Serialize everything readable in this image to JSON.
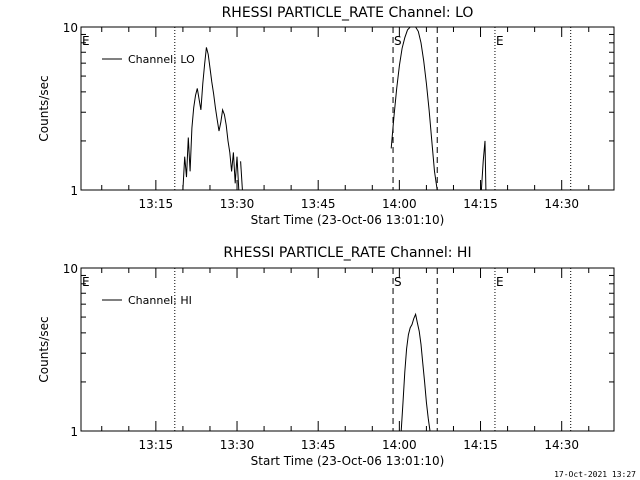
{
  "chart_data": [
    {
      "type": "line",
      "title": "RHESSI PARTICLE_RATE Channel: LO",
      "xlabel": "Start Time (23-Oct-06 13:01:10)",
      "ylabel": "Counts/sec",
      "yscale": "log",
      "ylim": [
        1,
        10
      ],
      "yticks": [
        "1",
        "10"
      ],
      "xlim": [
        "13:01:10",
        "14:39:40"
      ],
      "xticks": [
        "13:15",
        "13:30",
        "13:45",
        "14:00",
        "14:15",
        "14:30"
      ],
      "legend": "top-left",
      "series": [
        {
          "name": "Channel: LO",
          "x": [
            "13:20:00",
            "13:20:20",
            "13:20:40",
            "13:21:00",
            "13:21:20",
            "13:21:40",
            "13:22:00",
            "13:22:20",
            "13:22:40",
            "13:23:00",
            "13:23:20",
            "13:23:40",
            "13:24:00",
            "13:24:20",
            "13:24:40",
            "13:25:00",
            "13:25:20",
            "13:25:40",
            "13:26:00",
            "13:26:20",
            "13:26:40",
            "13:27:00",
            "13:27:20",
            "13:27:40",
            "13:28:00",
            "13:28:20",
            "13:28:40",
            "13:29:00",
            "13:29:20",
            "13:29:40",
            "13:30:00",
            "13:30:20",
            "13:30:40",
            "13:31:00",
            "13:31:20",
            "13:58:00",
            "13:58:30",
            "13:59:00",
            "13:59:30",
            "14:00:00",
            "14:00:30",
            "14:01:00",
            "14:01:30",
            "14:02:00",
            "14:02:30",
            "14:03:00",
            "14:03:30",
            "14:04:00",
            "14:04:30",
            "14:05:00",
            "14:05:30",
            "14:06:00",
            "14:06:30",
            "14:07:00",
            "14:15:10",
            "14:15:30",
            "14:15:50",
            "14:16:00"
          ],
          "y": [
            1,
            1.6,
            1.2,
            2.1,
            1.3,
            2.4,
            3.2,
            3.8,
            4.2,
            3.6,
            3.1,
            4.5,
            5.9,
            7.5,
            6.8,
            5.6,
            4.6,
            3.9,
            3.2,
            2.7,
            2.3,
            2.6,
            3.1,
            2.9,
            2.5,
            2.0,
            1.7,
            1.3,
            1.7,
            1.1,
            1.6,
            1.0,
            1.5,
            1.0,
            1,
            1,
            1.8,
            2.8,
            4.2,
            5.8,
            7.4,
            8.6,
            9.6,
            10,
            10,
            10,
            9.4,
            8.0,
            6.2,
            4.5,
            3.1,
            2.0,
            1.3,
            1,
            1,
            1.5,
            2.0,
            1
          ]
        }
      ],
      "markers": [
        {
          "label": "E",
          "x": "13:01:10",
          "style": "dotted"
        },
        {
          "label": "",
          "x": "13:18:30",
          "style": "dotted"
        },
        {
          "label": "S",
          "x": "13:58:50",
          "style": "dashed"
        },
        {
          "label": "",
          "x": "14:07:00",
          "style": "dashed"
        },
        {
          "label": "E",
          "x": "14:17:40",
          "style": "dotted"
        },
        {
          "label": "",
          "x": "14:31:40",
          "style": "dotted"
        }
      ]
    },
    {
      "type": "line",
      "title": "RHESSI PARTICLE_RATE Channel: HI",
      "xlabel": "Start Time (23-Oct-06 13:01:10)",
      "ylabel": "Counts/sec",
      "yscale": "log",
      "ylim": [
        1,
        10
      ],
      "yticks": [
        "1",
        "10"
      ],
      "xlim": [
        "13:01:10",
        "14:39:40"
      ],
      "xticks": [
        "13:15",
        "13:30",
        "13:45",
        "14:00",
        "14:15",
        "14:30"
      ],
      "legend": "top-left",
      "series": [
        {
          "name": "Channel: HI",
          "x": [
            "14:00:20",
            "14:00:40",
            "14:01:00",
            "14:01:20",
            "14:01:40",
            "14:02:00",
            "14:02:20",
            "14:02:40",
            "14:03:00",
            "14:03:20",
            "14:03:40",
            "14:04:00",
            "14:04:20",
            "14:04:40",
            "14:05:00",
            "14:05:20",
            "14:05:40"
          ],
          "y": [
            1,
            1.5,
            2.3,
            3.2,
            3.9,
            4.3,
            4.5,
            4.9,
            5.2,
            4.6,
            4.1,
            3.4,
            2.6,
            2.0,
            1.5,
            1.2,
            1
          ]
        }
      ],
      "markers": [
        {
          "label": "E",
          "x": "13:01:10",
          "style": "dotted"
        },
        {
          "label": "",
          "x": "13:18:30",
          "style": "dotted"
        },
        {
          "label": "S",
          "x": "13:58:50",
          "style": "dashed"
        },
        {
          "label": "",
          "x": "14:07:00",
          "style": "dashed"
        },
        {
          "label": "E",
          "x": "14:17:40",
          "style": "dotted"
        },
        {
          "label": "",
          "x": "14:31:40",
          "style": "dotted"
        }
      ]
    }
  ],
  "footer": {
    "timestamp": "17-Oct-2021 13:27"
  }
}
